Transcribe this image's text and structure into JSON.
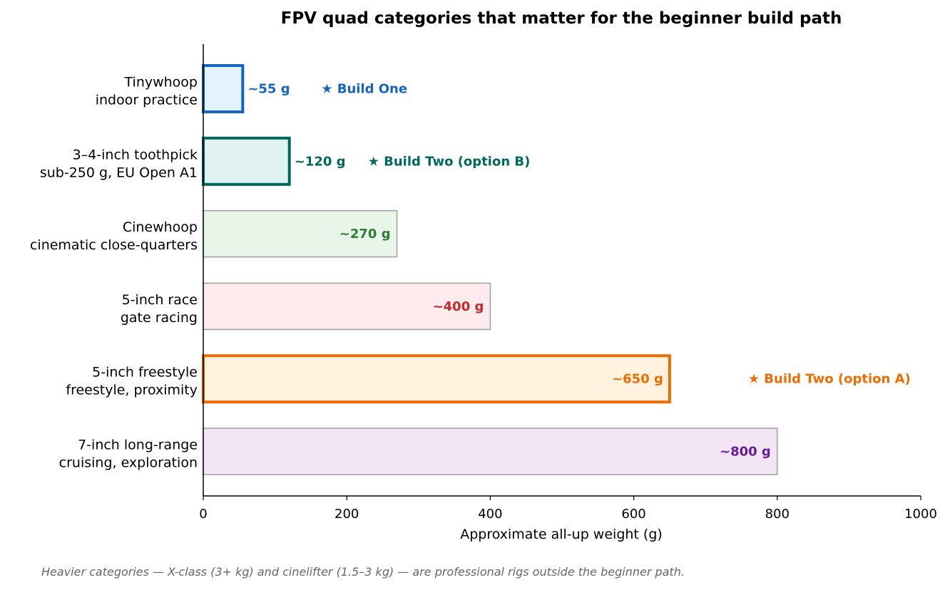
{
  "chart_data": {
    "type": "bar",
    "orientation": "horizontal",
    "title": "FPV quad categories that matter for the beginner build path",
    "xlabel": "Approximate all-up weight (g)",
    "ylabel": "",
    "xlim": [
      0,
      1000
    ],
    "xticks": [
      0,
      200,
      400,
      600,
      800,
      1000
    ],
    "xtick_labels": [
      "0",
      "200",
      "400",
      "600",
      "800",
      "1000"
    ],
    "grid": false,
    "categories": [
      {
        "name": "Tinywhoop",
        "subtitle": "indoor practice",
        "value": 55,
        "value_label": "~55 g",
        "note": "★ Build One",
        "fill": "#e3f2fd",
        "stroke": "#1565c0",
        "text_color": "#1565c0",
        "highlight": true
      },
      {
        "name": "3–4-inch toothpick",
        "subtitle": "sub-250 g, EU Open A1",
        "value": 120,
        "value_label": "~120 g",
        "note": "★ Build Two (option B)",
        "fill": "#e0f2f1",
        "stroke": "#00695c",
        "text_color": "#00695c",
        "highlight": true
      },
      {
        "name": "Cinewhoop",
        "subtitle": "cinematic close-quarters",
        "value": 270,
        "value_label": "~270 g",
        "note": "",
        "fill": "#e8f5e9",
        "stroke": "#9e9e9e",
        "text_color": "#2e7d32",
        "highlight": false
      },
      {
        "name": "5-inch race",
        "subtitle": "gate racing",
        "value": 400,
        "value_label": "~400 g",
        "note": "",
        "fill": "#ffebee",
        "stroke": "#9e9e9e",
        "text_color": "#c62828",
        "highlight": false
      },
      {
        "name": "5-inch freestyle",
        "subtitle": "freestyle, proximity",
        "value": 650,
        "value_label": "~650 g",
        "note": "★ Build Two (option A)",
        "fill": "#fff3e0",
        "stroke": "#ef6c00",
        "text_color": "#ef6c00",
        "highlight": true
      },
      {
        "name": "7-inch long-range",
        "subtitle": "cruising, exploration",
        "value": 800,
        "value_label": "~800 g",
        "note": "",
        "fill": "#f3e5f5",
        "stroke": "#9e9e9e",
        "text_color": "#6a1b9a",
        "highlight": false
      }
    ],
    "footnote": "Heavier categories — X-class (3+ kg) and cinelifter (1.5–3 kg) — are professional rigs outside the beginner path."
  }
}
